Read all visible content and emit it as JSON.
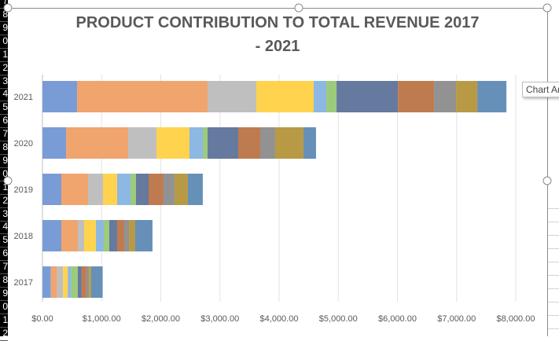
{
  "row_headers": [
    "7",
    "8",
    "9",
    "0",
    "1",
    "2",
    "3",
    "4",
    "5",
    "6",
    "7",
    "8",
    "9",
    "0",
    "1",
    "2",
    "3",
    "4",
    "5",
    "6",
    "7",
    "8",
    "9",
    "0",
    "1",
    "2"
  ],
  "tooltip": "Chart Ar",
  "chart_data": {
    "type": "bar",
    "orientation": "horizontal",
    "stacked": true,
    "title": "PRODUCT CONTRIBUTION TO TOTAL REVENUE 2017 - 2021",
    "title_lines": [
      "PRODUCT CONTRIBUTION TO TOTAL REVENUE 2017",
      "- 2021"
    ],
    "categories": [
      "2021",
      "2020",
      "2019",
      "2018",
      "2017"
    ],
    "xlim": [
      0,
      8000
    ],
    "x_ticks": [
      0,
      1000,
      2000,
      3000,
      4000,
      5000,
      6000,
      7000,
      8000
    ],
    "x_tick_labels": [
      "$0.00",
      "$1,000.00",
      "$2,000.00",
      "$3,000.00",
      "$4,000.00",
      "$5,000.00",
      "$6,000.00",
      "$7,000.00",
      "$8,000.00"
    ],
    "grid": "vertical",
    "legend": "bottom",
    "series": [
      {
        "color": "#7a9cd6",
        "values": [
          585,
          399,
          319,
          319,
          142
        ]
      },
      {
        "color": "#f0a46e",
        "values": [
          2206,
          1050,
          452,
          279,
          106
        ]
      },
      {
        "color": "#bfbfbf",
        "values": [
          824,
          478,
          252,
          106,
          101
        ]
      },
      {
        "color": "#ffd34e",
        "values": [
          970,
          558,
          239,
          199,
          80
        ]
      },
      {
        "color": "#8cb8e3",
        "values": [
          213,
          226,
          226,
          133,
          58
        ]
      },
      {
        "color": "#9ccb7b",
        "values": [
          173,
          80,
          93,
          93,
          110
        ]
      },
      {
        "color": "#66799e",
        "values": [
          1037,
          518,
          213,
          133,
          66
        ]
      },
      {
        "color": "#bf7b50",
        "values": [
          611,
          372,
          252,
          120,
          80
        ]
      },
      {
        "color": "#929292",
        "values": [
          372,
          252,
          186,
          80,
          44
        ]
      },
      {
        "color": "#b89a45",
        "values": [
          359,
          478,
          226,
          106,
          36
        ]
      },
      {
        "color": "#6690b8",
        "values": [
          492,
          213,
          252,
          292,
          195
        ]
      }
    ]
  }
}
